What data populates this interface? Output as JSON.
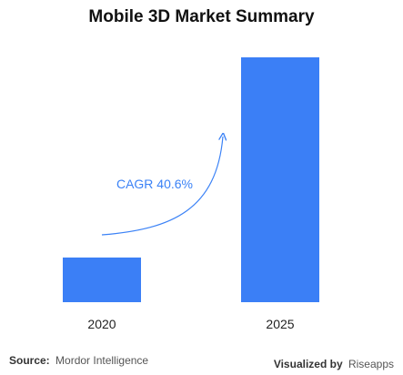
{
  "chart_data": {
    "type": "bar",
    "title": "Mobile 3D Market Summary",
    "categories": [
      "2020",
      "2025"
    ],
    "values": [
      1,
      5.48
    ],
    "ylim": [
      0,
      5.48
    ],
    "annotation": "CAGR 40.6%",
    "bar_color": "#3b7ff6",
    "annotation_color": "#3b82f6",
    "grid": false,
    "legend": "none"
  },
  "footer": {
    "source_label": "Source:",
    "source_value": "Mordor Intelligence",
    "visualized_label": "Visualized by",
    "visualized_value": "Riseapps"
  }
}
